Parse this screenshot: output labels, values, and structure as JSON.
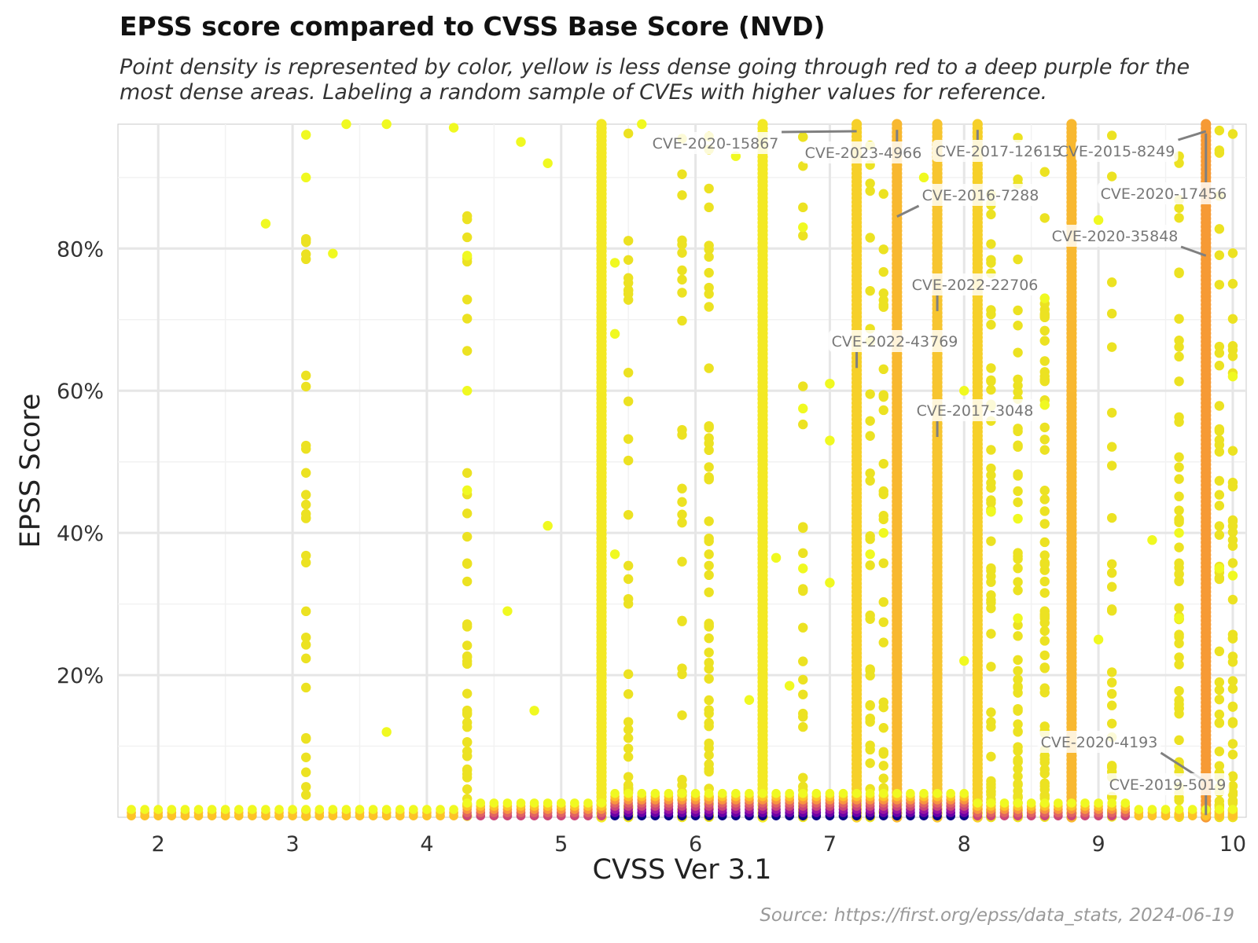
{
  "chart_data": {
    "type": "scatter",
    "title": "EPSS score compared to CVSS Base Score (NVD)",
    "subtitle": "Point density is represented by color, yellow is less dense going through red to a deep purple for the most dense areas. Labeling a random sample of CVEs with higher values for reference.",
    "source": "Source: https://first.org/epss/data_stats, 2024-06-19",
    "xlabel": "CVSS Ver 3.1",
    "ylabel": "EPSS Score",
    "xlim": [
      1.7,
      10.1
    ],
    "ylim": [
      0,
      0.975
    ],
    "x_ticks": [
      2,
      3,
      4,
      5,
      6,
      7,
      8,
      9,
      10
    ],
    "x_tick_labels": [
      "2",
      "3",
      "4",
      "5",
      "6",
      "7",
      "8",
      "9",
      "10"
    ],
    "y_ticks": [
      0.2,
      0.4,
      0.6,
      0.8
    ],
    "y_tick_labels": [
      "20%",
      "40%",
      "60%",
      "80%"
    ],
    "grid": true,
    "colors": {
      "low_density": "#f0f921",
      "mid_density": "#f89540",
      "high_density": "#cc4778",
      "max_density": "#0d0887"
    },
    "dense_columns": [
      {
        "x": 5.3,
        "ymax": 0.975,
        "color": "#f3e924"
      },
      {
        "x": 6.5,
        "ymax": 0.975,
        "color": "#f3e924"
      },
      {
        "x": 7.2,
        "ymax": 0.975,
        "color": "#f6d02a"
      },
      {
        "x": 7.5,
        "ymax": 0.975,
        "color": "#f8b830"
      },
      {
        "x": 7.8,
        "ymax": 0.975,
        "color": "#f7c530"
      },
      {
        "x": 8.1,
        "ymax": 0.975,
        "color": "#f6d02a"
      },
      {
        "x": 8.8,
        "ymax": 0.975,
        "color": "#f8b830"
      },
      {
        "x": 9.8,
        "ymax": 0.975,
        "color": "#f69a35"
      }
    ],
    "labeled_points": [
      {
        "cve": "CVE-2020-15867",
        "x": 7.2,
        "y": 0.965
      },
      {
        "cve": "CVE-2023-4966",
        "x": 7.5,
        "y": 0.967
      },
      {
        "cve": "CVE-2017-12615",
        "x": 8.1,
        "y": 0.967
      },
      {
        "cve": "CVE-2015-8249",
        "x": 9.8,
        "y": 0.965
      },
      {
        "cve": "CVE-2016-7288",
        "x": 7.5,
        "y": 0.845
      },
      {
        "cve": "CVE-2020-17456",
        "x": 9.8,
        "y": 0.962
      },
      {
        "cve": "CVE-2020-35848",
        "x": 9.8,
        "y": 0.79
      },
      {
        "cve": "CVE-2022-22706",
        "x": 7.8,
        "y": 0.712
      },
      {
        "cve": "CVE-2022-43769",
        "x": 7.2,
        "y": 0.632
      },
      {
        "cve": "CVE-2017-3048",
        "x": 7.8,
        "y": 0.535
      },
      {
        "cve": "CVE-2020-4193",
        "x": 9.8,
        "y": 0.05
      },
      {
        "cve": "CVE-2019-5019",
        "x": 9.8,
        "y": 0.003
      }
    ]
  }
}
